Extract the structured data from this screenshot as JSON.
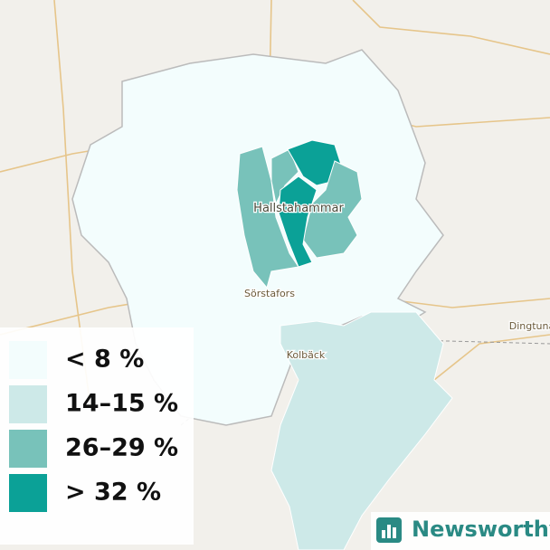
{
  "places": [
    {
      "label": "Hallstahammar"
    },
    {
      "label": "Sörstafors"
    },
    {
      "label": "Kolbäck"
    },
    {
      "label": "Dingtuna"
    }
  ],
  "legend": [
    {
      "label": "< 8 %",
      "color": "#f3fdfd"
    },
    {
      "label": "14–15 %",
      "color": "#cde9e8"
    },
    {
      "label": "26–29 %",
      "color": "#78c2ba"
    },
    {
      "label": "> 32 %",
      "color": "#0ba197"
    }
  ],
  "brand": "Newsworthy"
}
